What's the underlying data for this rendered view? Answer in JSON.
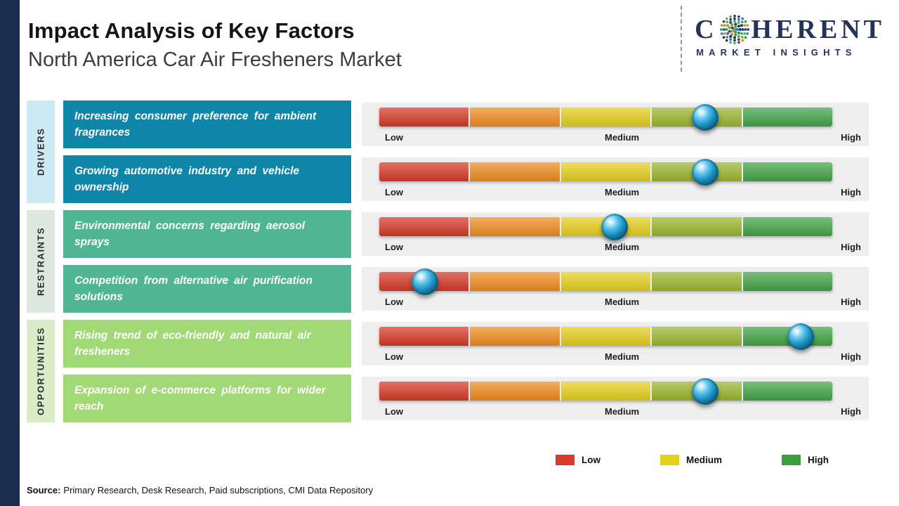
{
  "page": {
    "title": "Impact Analysis of Key Factors",
    "subtitle": "North America Car Air Fresheners Market",
    "source_label": "Source:",
    "source_text": "Primary Research, Desk Research, Paid subscriptions, CMI Data Repository"
  },
  "logo": {
    "prefix": "C",
    "suffix": "HERENT",
    "tagline": "MARKET INSIGHTS",
    "text_color": "#25335c",
    "globe_colors": [
      "#1f3864",
      "#2e75b6",
      "#3a9d4e",
      "#e28422",
      "#274b7a",
      "#52b153",
      "#6aa63c",
      "#203864"
    ]
  },
  "colors": {
    "left_strip": "#1b2c4e",
    "drivers_label_bg": "#cde9f3",
    "restraints_label_bg": "#dde8e1",
    "opportunities_label_bg": "#d7ecc7",
    "drivers_box": "#0f86a8",
    "restraints_box": "#50b593",
    "opportunities_box": "#a2d977",
    "row_track_bg": "#efefef"
  },
  "chart_data": {
    "type": "bar",
    "title": "Impact Analysis of Key Factors",
    "subtitle": "North America Car Air Fresheners Market",
    "scale_labels": [
      "Low",
      "Medium",
      "High"
    ],
    "bar_colors": [
      "#d63a28",
      "#ef8d20",
      "#e6d01e",
      "#9cb72f",
      "#43a447"
    ],
    "legend": [
      {
        "label": "Low",
        "color": "#d63a28"
      },
      {
        "label": "Medium",
        "color": "#e6d01e"
      },
      {
        "label": "High",
        "color": "#3ba03b"
      }
    ],
    "groups": [
      {
        "name": "DRIVERS",
        "factors": [
          {
            "text": "Increasing consumer preference for ambient fragrances",
            "impact_pct": 72,
            "impact_level": "Medium-High"
          },
          {
            "text": "Growing automotive industry and vehicle ownership",
            "impact_pct": 72,
            "impact_level": "Medium-High"
          }
        ]
      },
      {
        "name": "RESTRAINTS",
        "factors": [
          {
            "text": "Environmental concerns regarding aerosol sprays",
            "impact_pct": 52,
            "impact_level": "Medium"
          },
          {
            "text": "Competition from alternative air purification solutions",
            "impact_pct": 10,
            "impact_level": "Low"
          }
        ]
      },
      {
        "name": "OPPORTUNITIES",
        "factors": [
          {
            "text": "Rising trend of eco-friendly and natural air fresheners",
            "impact_pct": 93,
            "impact_level": "High"
          },
          {
            "text": "Expansion of e-commerce platforms for wider reach",
            "impact_pct": 72,
            "impact_level": "Medium-High"
          }
        ]
      }
    ]
  }
}
